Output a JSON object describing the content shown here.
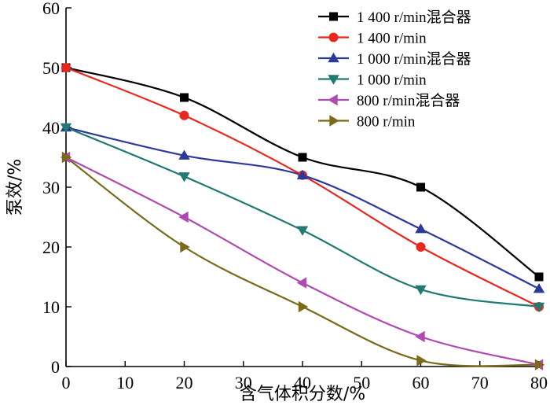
{
  "chart_data": {
    "type": "line",
    "title": "",
    "xlabel": "含气体积分数/%",
    "ylabel": "泵效/%",
    "xlim": [
      0,
      80
    ],
    "ylim": [
      0,
      60
    ],
    "xticks": [
      0,
      10,
      20,
      30,
      40,
      50,
      60,
      70,
      80
    ],
    "yticks": [
      0,
      10,
      20,
      30,
      40,
      50,
      60
    ],
    "x": [
      0,
      20,
      40,
      60,
      80
    ],
    "legend_position": "top-right",
    "series": [
      {
        "name": "1 400 r/min混合器",
        "marker": "square",
        "color": "#000000",
        "values": [
          50,
          45,
          35,
          30,
          15
        ]
      },
      {
        "name": "1 400 r/min",
        "marker": "circle",
        "color": "#e8281e",
        "values": [
          50,
          42,
          32,
          20,
          10
        ]
      },
      {
        "name": "1 000 r/min混合器",
        "marker": "triangle-up",
        "color": "#2b3a9a",
        "values": [
          40,
          35.3,
          32,
          23,
          13
        ]
      },
      {
        "name": "1 000 r/min",
        "marker": "triangle-down",
        "color": "#1f7a72",
        "values": [
          40,
          31.8,
          22.8,
          12.9,
          10
        ]
      },
      {
        "name": "800 r/min混合器",
        "marker": "triangle-left",
        "color": "#b04ab0",
        "values": [
          35,
          25,
          14,
          5,
          0.3
        ]
      },
      {
        "name": "800 r/min",
        "marker": "triangle-right",
        "color": "#7a6a1a",
        "values": [
          35,
          20,
          10,
          1,
          0.3
        ]
      }
    ]
  }
}
